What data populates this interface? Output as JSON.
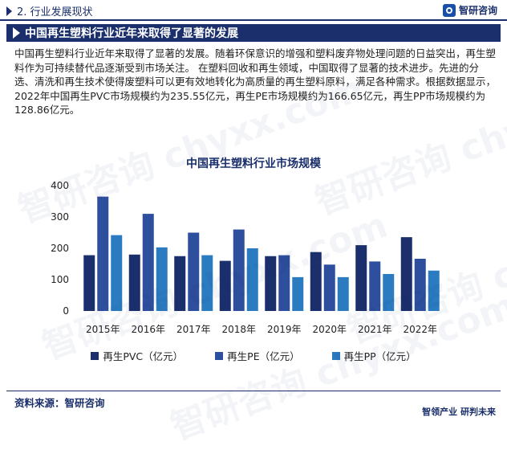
{
  "header": {
    "section_label": "2. 行业发展现状",
    "brand_name": "智研咨询",
    "brand_logo_icon": "chyxx-logo-icon"
  },
  "banner": {
    "title": "中国再生塑料行业近年来取得了显著的发展"
  },
  "body": {
    "paragraph": "中国再生塑料行业近年来取得了显著的发展。随着环保意识的增强和塑料废弃物处理问题的日益突出，再生塑料作为可持续替代品逐渐受到市场关注。 在塑料回收和再生领域，中国取得了显著的技术进步。先进的分选、清洗和再生技术使得废塑料可以更有效地转化为高质量的再生塑料原料，满足各种需求。根据数据显示，2022年中国再生PVC市场规模约为235.55亿元，再生PE市场规模约为166.65亿元，再生PP市场规模约为128.86亿元。"
  },
  "chart_data": {
    "type": "bar",
    "title": "中国再生塑料行业市场规模",
    "categories": [
      "2015年",
      "2016年",
      "2017年",
      "2018年",
      "2019年",
      "2020年",
      "2021年",
      "2022年"
    ],
    "series": [
      {
        "name": "再生PVC（亿元）",
        "color": "#1a2f6b",
        "values": [
          178,
          180,
          175,
          160,
          175,
          188,
          210,
          235.55
        ]
      },
      {
        "name": "再生PE（亿元）",
        "color": "#2e4f9e",
        "values": [
          365,
          310,
          250,
          260,
          178,
          148,
          158,
          166.65
        ]
      },
      {
        "name": "再生PP（亿元）",
        "color": "#2b7bc0",
        "values": [
          242,
          203,
          178,
          200,
          108,
          108,
          118,
          128.86
        ]
      }
    ],
    "yticks": [
      0,
      100,
      200,
      300,
      400
    ],
    "ylim": [
      0,
      400
    ],
    "grid": false,
    "legend_position": "bottom"
  },
  "footer": {
    "source": "资料来源：智研咨询",
    "brand_line": "智领产业 研判未来"
  },
  "watermark_text": "智研咨询 chyxx.com"
}
